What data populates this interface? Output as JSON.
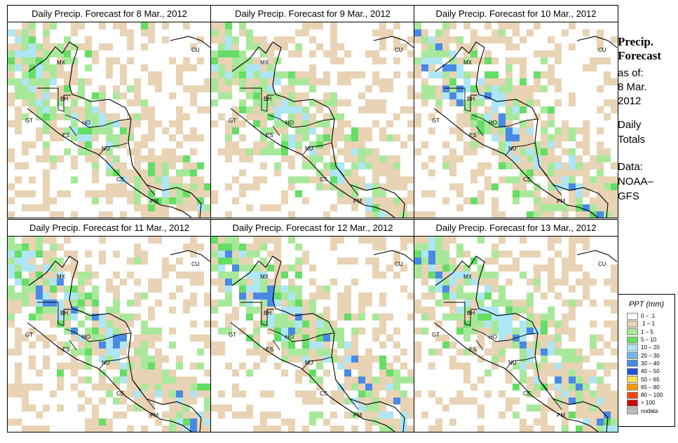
{
  "panels": [
    {
      "title": "Daily Precip. Forecast for  8 Mar., 2012"
    },
    {
      "title": "Daily Precip. Forecast for  9 Mar., 2012"
    },
    {
      "title": "Daily Precip. Forecast for  10 Mar., 2012"
    },
    {
      "title": "Daily Precip. Forecast for  11 Mar., 2012"
    },
    {
      "title": "Daily Precip. Forecast for  12 Mar., 2012"
    },
    {
      "title": "Daily Precip. Forecast for  13 Mar., 2012"
    }
  ],
  "country_labels": [
    "MX",
    "BH",
    "GT",
    "HO",
    "ES",
    "NU",
    "CS",
    "PM",
    "CU"
  ],
  "sidebar": {
    "title_line1": "Precip.",
    "title_line2": "Forecast",
    "asof_line1": "as of:",
    "asof_line2": "8 Mar.",
    "asof_line3": "2012",
    "daily_line1": "Daily",
    "daily_line2": "Totals",
    "data_line1": "Data:",
    "data_line2": "NOAA–",
    "data_line3": "GFS"
  },
  "legend": {
    "title": "PPT (mm)",
    "items": [
      {
        "label": "0 – .1",
        "color": "#ffffff"
      },
      {
        "label": ".1 – 1",
        "color": "#e8d3b4"
      },
      {
        "label": "1 – 5",
        "color": "#a8e89a"
      },
      {
        "label": "5 – 10",
        "color": "#66dd66"
      },
      {
        "label": "10 – 20",
        "color": "#aee6f5"
      },
      {
        "label": "20 – 30",
        "color": "#77b4ee"
      },
      {
        "label": "30 – 40",
        "color": "#4a8ae6"
      },
      {
        "label": "40 – 50",
        "color": "#2255dd"
      },
      {
        "label": "50 – 65",
        "color": "#ffdd55"
      },
      {
        "label": "65 – 80",
        "color": "#ff9900"
      },
      {
        "label": "80 – 100",
        "color": "#ff4400"
      },
      {
        "label": "> 100",
        "color": "#cc0000"
      },
      {
        "label": "nodata",
        "color": "#bbbbbb"
      }
    ]
  }
}
